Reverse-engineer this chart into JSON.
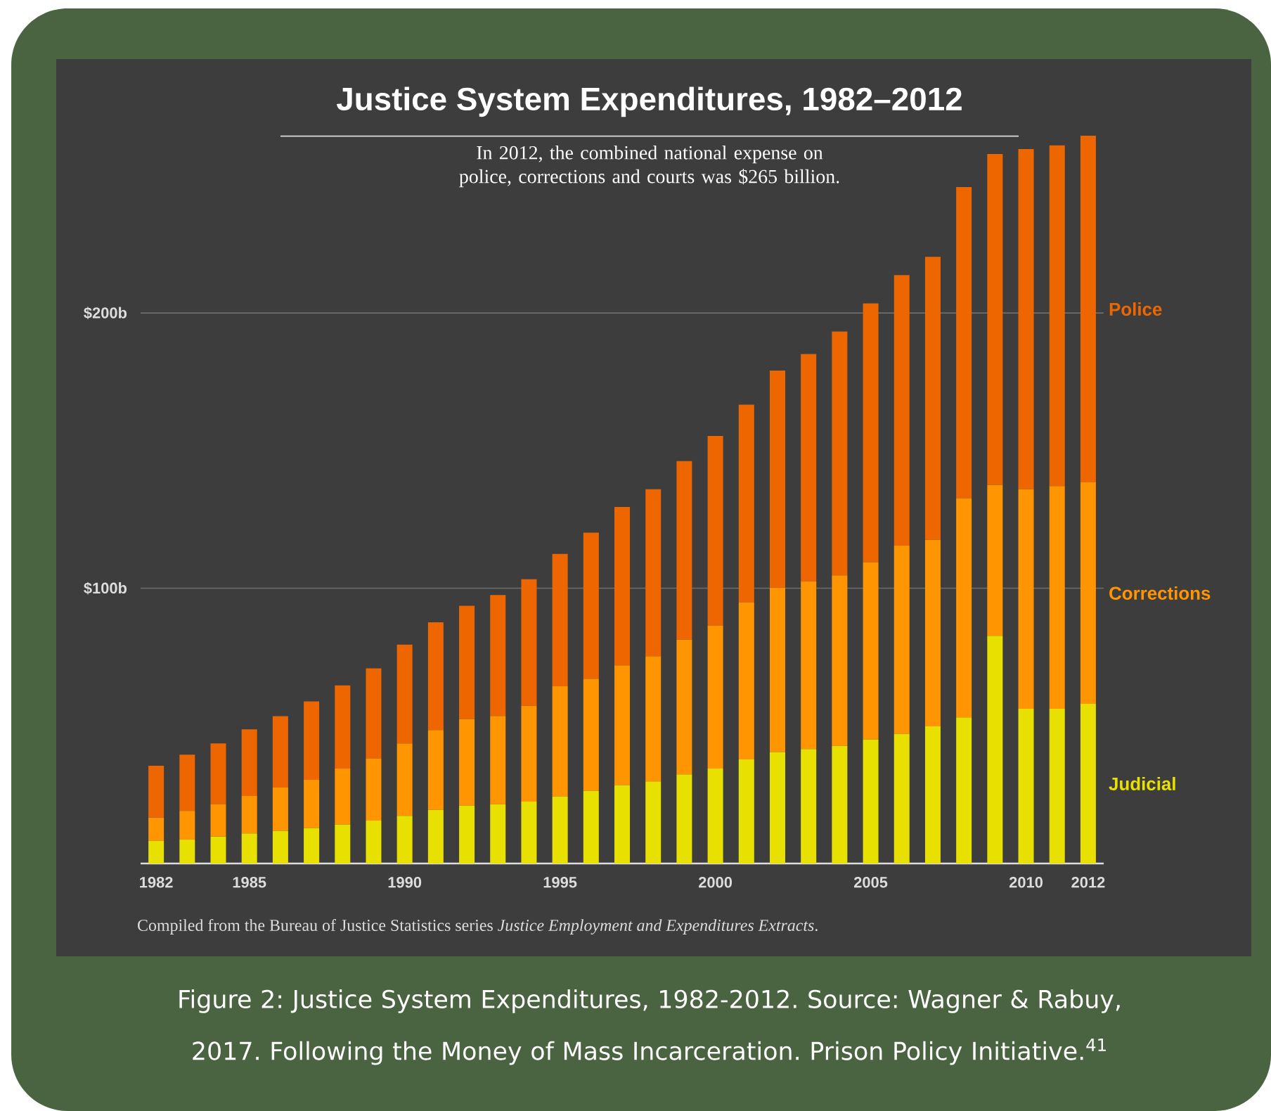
{
  "chart_data": {
    "type": "bar",
    "stacked": true,
    "title": "Justice System Expenditures, 1982–2012",
    "subtitle": "In 2012, the combined national expense on police, corrections and courts was $265 billion.",
    "categories": [
      "1982",
      null,
      null,
      "1985",
      null,
      null,
      null,
      null,
      "1990",
      null,
      null,
      null,
      null,
      "1995",
      null,
      null,
      null,
      null,
      "2000",
      null,
      null,
      null,
      null,
      "2005",
      null,
      null,
      null,
      null,
      "2010",
      null,
      "2012"
    ],
    "series": [
      {
        "name": "Judicial",
        "color": "#e8e000",
        "values": [
          8.2,
          8.7,
          9.8,
          10.9,
          11.8,
          12.9,
          14.2,
          15.6,
          17.3,
          19.5,
          21.1,
          21.5,
          22.5,
          24.4,
          26.4,
          28.5,
          29.8,
          32.4,
          34.5,
          37.8,
          40.5,
          41.6,
          42.7,
          45.1,
          47.1,
          49.8,
          53.1,
          82.7,
          56.2,
          56.2,
          58.0
        ]
      },
      {
        "name": "Corrections",
        "color": "#ff9500",
        "values": [
          8.5,
          10.4,
          11.8,
          13.6,
          15.8,
          17.5,
          20.3,
          22.6,
          26.3,
          29.0,
          31.4,
          32.1,
          34.8,
          40.0,
          40.7,
          43.5,
          45.5,
          48.9,
          52.0,
          57.1,
          59.7,
          60.9,
          62.0,
          64.4,
          68.4,
          67.8,
          79.6,
          54.8,
          79.8,
          80.9,
          80.5
        ]
      },
      {
        "name": "Police",
        "color": "#ee6600",
        "values": [
          18.8,
          20.4,
          22.0,
          24.2,
          25.9,
          28.5,
          30.2,
          32.7,
          35.9,
          39.1,
          41.1,
          43.9,
          46.0,
          48.1,
          53.1,
          57.5,
          60.7,
          64.9,
          68.8,
          71.8,
          78.9,
          82.6,
          88.6,
          94.0,
          98.3,
          102.8,
          113.1,
          120.3,
          123.6,
          123.8,
          125.9
        ]
      }
    ],
    "yticks": [
      {
        "value": 100,
        "label": "$100b"
      },
      {
        "value": 200,
        "label": "$200b"
      }
    ],
    "ylim": [
      0,
      265
    ],
    "grid": "y",
    "annotations": [
      "Compiled from the Bureau of Justice Statistics series *Justice Employment and Expenditures Extracts*.",
      "Figure 2: Justice System Expenditures, 1982-2012. Source: Wagner & Rabuy, 2017. Following the Money of Mass Incarceration. Prison Policy Initiative.$^{41}$"
    ]
  }
}
